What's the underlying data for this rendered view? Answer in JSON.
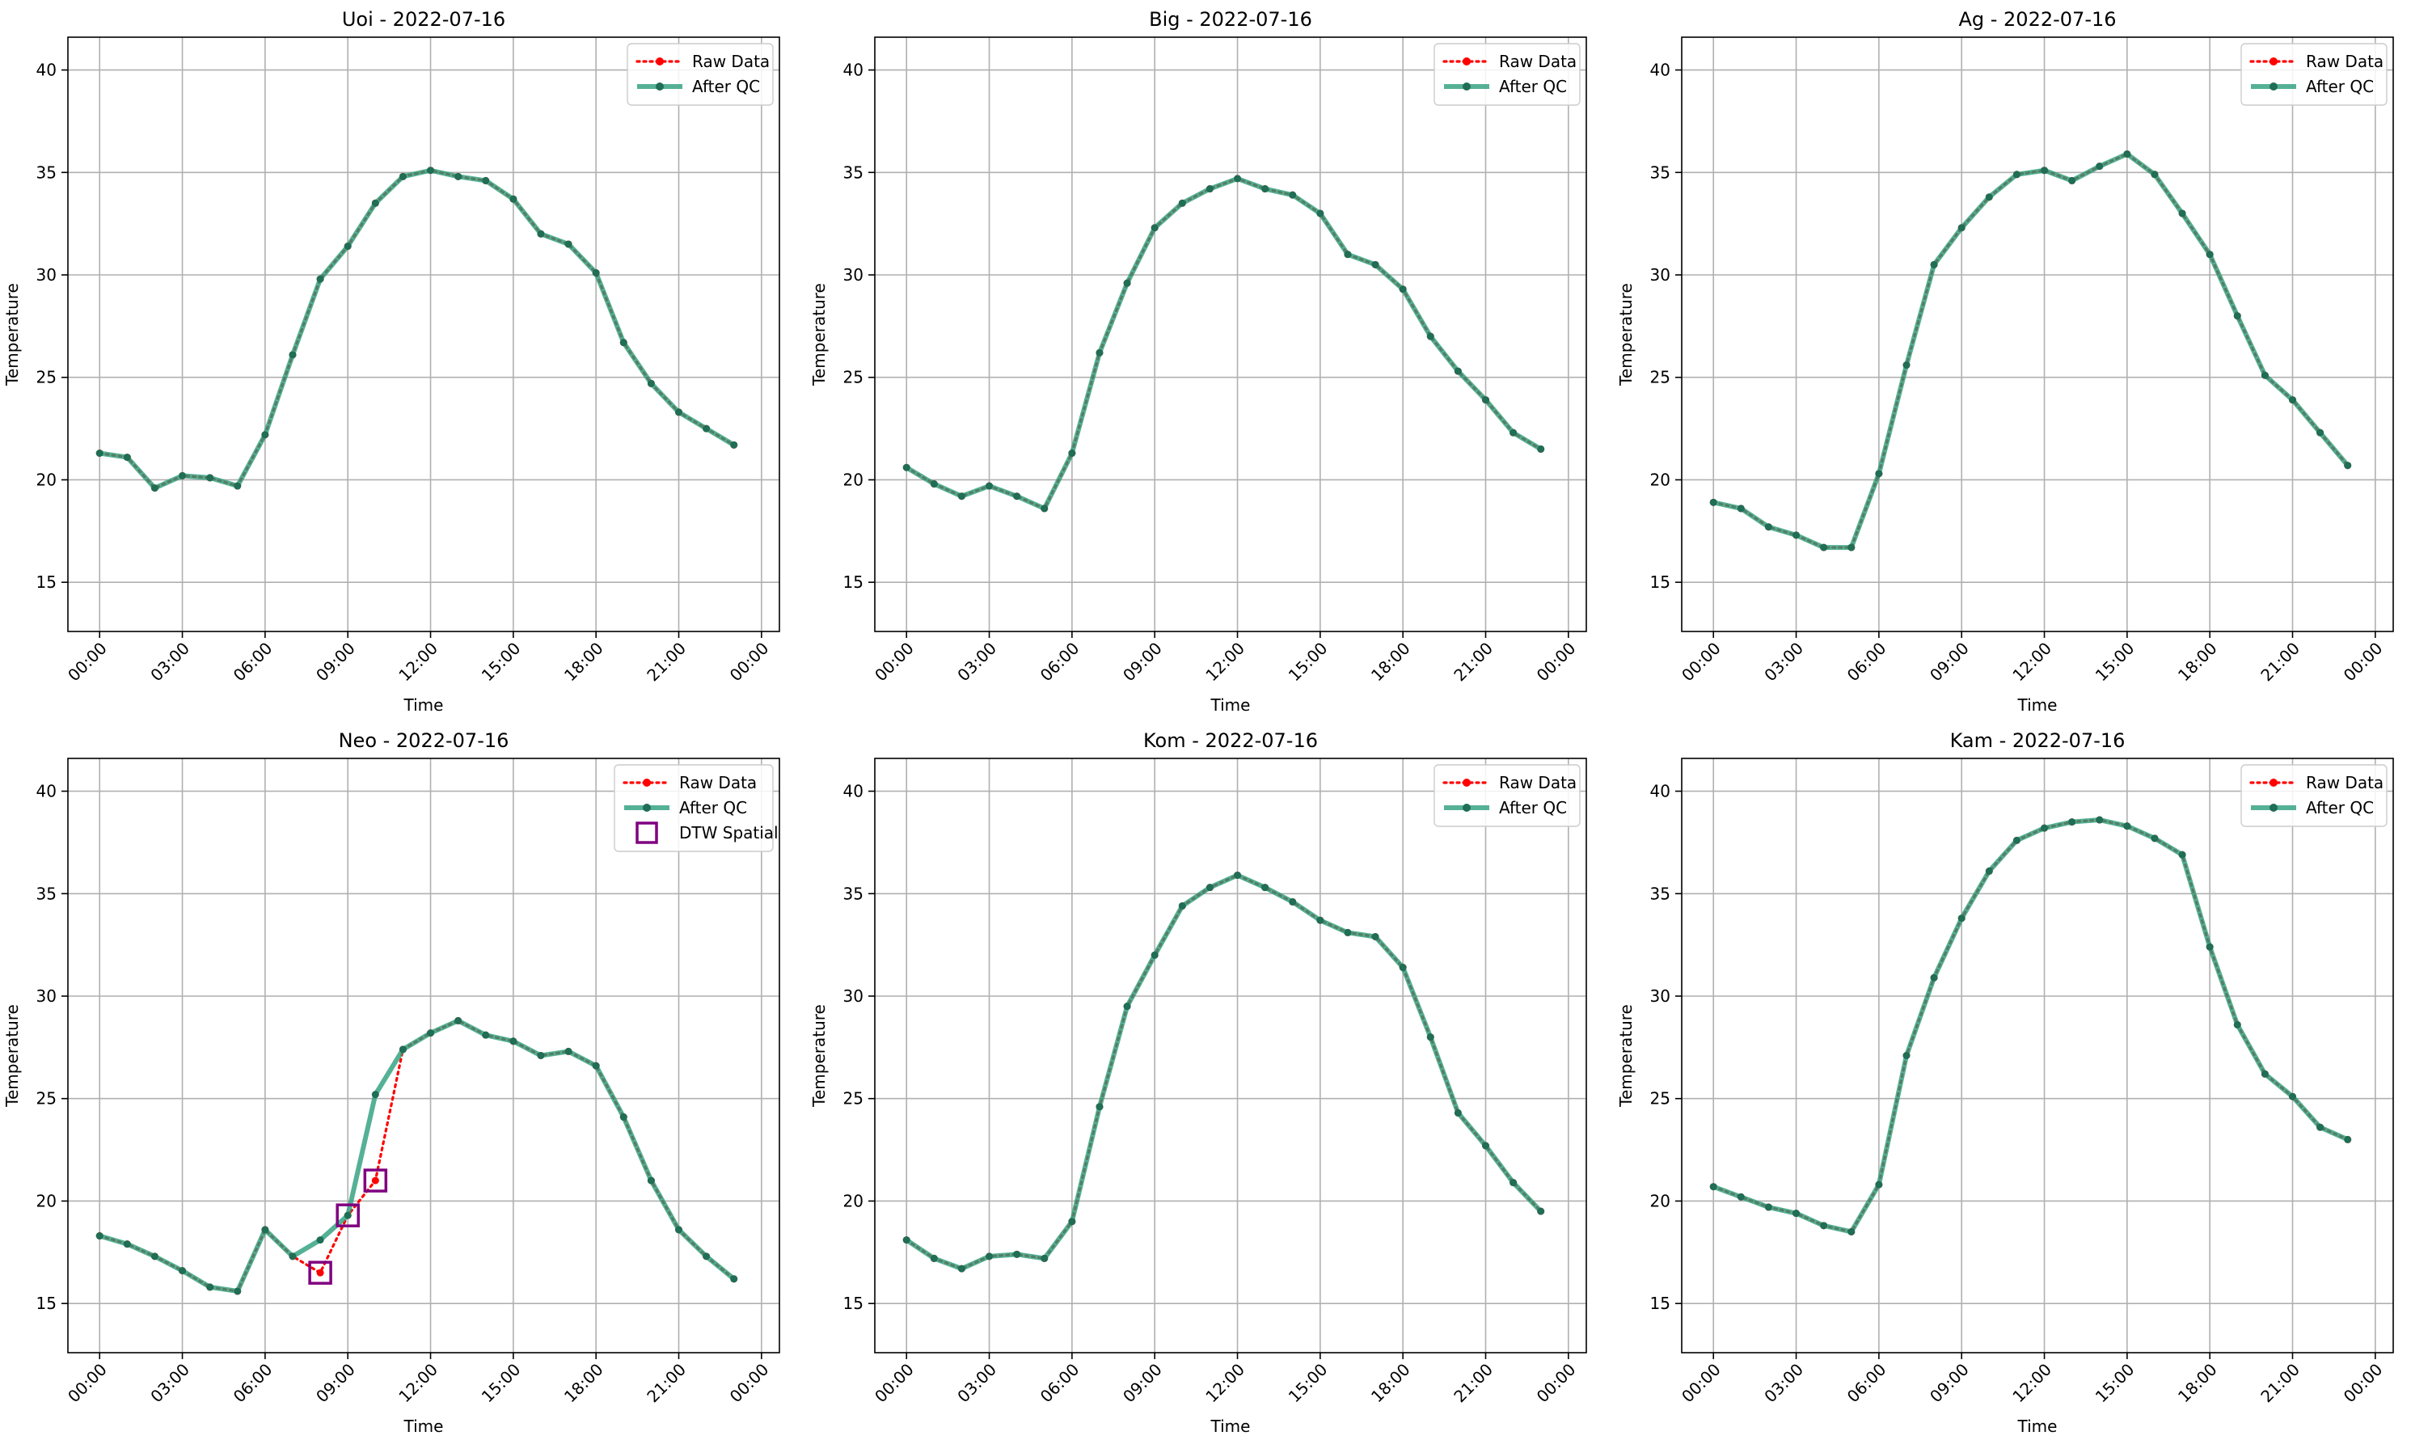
{
  "colors": {
    "raw": "#ff0000",
    "qc": "#2a9d7c",
    "qc_marker": "#1f6e55",
    "dtw_box": "#800080",
    "grid": "#b0b0b0",
    "axis": "#000000"
  },
  "chart_data": [
    {
      "type": "line",
      "title": "Uoi - 2022-07-16",
      "xlabel": "Time",
      "ylabel": "Temperature",
      "x_tick_labels": [
        "00:00",
        "03:00",
        "06:00",
        "09:00",
        "12:00",
        "15:00",
        "18:00",
        "21:00",
        "00:00"
      ],
      "y_ticks": [
        15,
        20,
        25,
        30,
        35,
        40
      ],
      "ylim": [
        12.6,
        41.6
      ],
      "grid": true,
      "legend_position": "top-right",
      "legend": [
        "Raw Data",
        "After QC"
      ],
      "hours": [
        0,
        1,
        2,
        3,
        4,
        5,
        6,
        7,
        8,
        9,
        10,
        11,
        12,
        13,
        14,
        15,
        16,
        17,
        18,
        19,
        20,
        21,
        22,
        23
      ],
      "series": [
        {
          "name": "Raw Data",
          "values": [
            21.3,
            21.1,
            19.6,
            20.2,
            20.1,
            19.7,
            22.2,
            26.1,
            29.8,
            31.4,
            33.5,
            34.8,
            35.1,
            34.8,
            34.6,
            33.7,
            32.0,
            31.5,
            30.1,
            26.7,
            24.7,
            23.3,
            22.5,
            21.7
          ]
        },
        {
          "name": "After QC",
          "values": [
            21.3,
            21.1,
            19.6,
            20.2,
            20.1,
            19.7,
            22.2,
            26.1,
            29.8,
            31.4,
            33.5,
            34.8,
            35.1,
            34.8,
            34.6,
            33.7,
            32.0,
            31.5,
            30.1,
            26.7,
            24.7,
            23.3,
            22.5,
            21.7
          ]
        }
      ],
      "flagged": []
    },
    {
      "type": "line",
      "title": "Big - 2022-07-16",
      "xlabel": "Time",
      "ylabel": "Temperature",
      "x_tick_labels": [
        "00:00",
        "03:00",
        "06:00",
        "09:00",
        "12:00",
        "15:00",
        "18:00",
        "21:00",
        "00:00"
      ],
      "y_ticks": [
        15,
        20,
        25,
        30,
        35,
        40
      ],
      "ylim": [
        12.6,
        41.6
      ],
      "grid": true,
      "legend_position": "top-right",
      "legend": [
        "Raw Data",
        "After QC"
      ],
      "hours": [
        0,
        1,
        2,
        3,
        4,
        5,
        6,
        7,
        8,
        9,
        10,
        11,
        12,
        13,
        14,
        15,
        16,
        17,
        18,
        19,
        20,
        21,
        22,
        23
      ],
      "series": [
        {
          "name": "Raw Data",
          "values": [
            20.6,
            19.8,
            19.2,
            19.7,
            19.2,
            18.6,
            21.3,
            26.2,
            29.6,
            32.3,
            33.5,
            34.2,
            34.7,
            34.2,
            33.9,
            33.0,
            31.0,
            30.5,
            29.3,
            27.0,
            25.3,
            23.9,
            22.3,
            21.5
          ]
        },
        {
          "name": "After QC",
          "values": [
            20.6,
            19.8,
            19.2,
            19.7,
            19.2,
            18.6,
            21.3,
            26.2,
            29.6,
            32.3,
            33.5,
            34.2,
            34.7,
            34.2,
            33.9,
            33.0,
            31.0,
            30.5,
            29.3,
            27.0,
            25.3,
            23.9,
            22.3,
            21.5
          ]
        }
      ],
      "flagged": []
    },
    {
      "type": "line",
      "title": "Ag - 2022-07-16",
      "xlabel": "Time",
      "ylabel": "Temperature",
      "x_tick_labels": [
        "00:00",
        "03:00",
        "06:00",
        "09:00",
        "12:00",
        "15:00",
        "18:00",
        "21:00",
        "00:00"
      ],
      "y_ticks": [
        15,
        20,
        25,
        30,
        35,
        40
      ],
      "ylim": [
        12.6,
        41.6
      ],
      "grid": true,
      "legend_position": "top-right",
      "legend": [
        "Raw Data",
        "After QC"
      ],
      "hours": [
        0,
        1,
        2,
        3,
        4,
        5,
        6,
        7,
        8,
        9,
        10,
        11,
        12,
        13,
        14,
        15,
        16,
        17,
        18,
        19,
        20,
        21,
        22,
        23
      ],
      "series": [
        {
          "name": "Raw Data",
          "values": [
            18.9,
            18.6,
            17.7,
            17.3,
            16.7,
            16.7,
            20.3,
            25.6,
            30.5,
            32.3,
            33.8,
            34.9,
            35.1,
            34.6,
            35.3,
            35.9,
            34.9,
            33.0,
            31.0,
            28.0,
            25.1,
            23.9,
            22.3,
            20.7
          ]
        },
        {
          "name": "After QC",
          "values": [
            18.9,
            18.6,
            17.7,
            17.3,
            16.7,
            16.7,
            20.3,
            25.6,
            30.5,
            32.3,
            33.8,
            34.9,
            35.1,
            34.6,
            35.3,
            35.9,
            34.9,
            33.0,
            31.0,
            28.0,
            25.1,
            23.9,
            22.3,
            20.7
          ]
        }
      ],
      "flagged": []
    },
    {
      "type": "line",
      "title": "Neo - 2022-07-16",
      "xlabel": "Time",
      "ylabel": "Temperature",
      "x_tick_labels": [
        "00:00",
        "03:00",
        "06:00",
        "09:00",
        "12:00",
        "15:00",
        "18:00",
        "21:00",
        "00:00"
      ],
      "y_ticks": [
        15,
        20,
        25,
        30,
        35,
        40
      ],
      "ylim": [
        12.6,
        41.6
      ],
      "grid": true,
      "legend_position": "top-right",
      "legend": [
        "Raw Data",
        "After QC",
        "DTW Spatial"
      ],
      "hours": [
        0,
        1,
        2,
        3,
        4,
        5,
        6,
        7,
        8,
        9,
        10,
        11,
        12,
        13,
        14,
        15,
        16,
        17,
        18,
        19,
        20,
        21,
        22,
        23
      ],
      "series": [
        {
          "name": "Raw Data",
          "values": [
            18.3,
            17.9,
            17.3,
            16.6,
            15.8,
            15.6,
            18.6,
            17.3,
            16.5,
            19.3,
            21.0,
            27.4,
            28.2,
            28.8,
            28.1,
            27.8,
            27.1,
            27.3,
            26.6,
            24.1,
            21.0,
            18.6,
            17.3,
            16.2
          ]
        },
        {
          "name": "After QC",
          "values": [
            18.3,
            17.9,
            17.3,
            16.6,
            15.8,
            15.6,
            18.6,
            17.3,
            18.1,
            19.3,
            25.2,
            27.4,
            28.2,
            28.8,
            28.1,
            27.8,
            27.1,
            27.3,
            26.6,
            24.1,
            21.0,
            18.6,
            17.3,
            16.2
          ]
        }
      ],
      "flagged": [
        {
          "hour": 8,
          "value": 16.5
        },
        {
          "hour": 9,
          "value": 19.3
        },
        {
          "hour": 10,
          "value": 21.0
        }
      ]
    },
    {
      "type": "line",
      "title": "Kom - 2022-07-16",
      "xlabel": "Time",
      "ylabel": "Temperature",
      "x_tick_labels": [
        "00:00",
        "03:00",
        "06:00",
        "09:00",
        "12:00",
        "15:00",
        "18:00",
        "21:00",
        "00:00"
      ],
      "y_ticks": [
        15,
        20,
        25,
        30,
        35,
        40
      ],
      "ylim": [
        12.6,
        41.6
      ],
      "grid": true,
      "legend_position": "top-right",
      "legend": [
        "Raw Data",
        "After QC"
      ],
      "hours": [
        0,
        1,
        2,
        3,
        4,
        5,
        6,
        7,
        8,
        9,
        10,
        11,
        12,
        13,
        14,
        15,
        16,
        17,
        18,
        19,
        20,
        21,
        22,
        23
      ],
      "series": [
        {
          "name": "Raw Data",
          "values": [
            18.1,
            17.2,
            16.7,
            17.3,
            17.4,
            17.2,
            19.0,
            24.6,
            29.5,
            32.0,
            34.4,
            35.3,
            35.9,
            35.3,
            34.6,
            33.7,
            33.1,
            32.9,
            31.4,
            28.0,
            24.3,
            22.7,
            20.9,
            19.5
          ]
        },
        {
          "name": "After QC",
          "values": [
            18.1,
            17.2,
            16.7,
            17.3,
            17.4,
            17.2,
            19.0,
            24.6,
            29.5,
            32.0,
            34.4,
            35.3,
            35.9,
            35.3,
            34.6,
            33.7,
            33.1,
            32.9,
            31.4,
            28.0,
            24.3,
            22.7,
            20.9,
            19.5
          ]
        }
      ],
      "flagged": []
    },
    {
      "type": "line",
      "title": "Kam - 2022-07-16",
      "xlabel": "Time",
      "ylabel": "Temperature",
      "x_tick_labels": [
        "00:00",
        "03:00",
        "06:00",
        "09:00",
        "12:00",
        "15:00",
        "18:00",
        "21:00",
        "00:00"
      ],
      "y_ticks": [
        15,
        20,
        25,
        30,
        35,
        40
      ],
      "ylim": [
        12.6,
        41.6
      ],
      "grid": true,
      "legend_position": "top-right",
      "legend": [
        "Raw Data",
        "After QC"
      ],
      "hours": [
        0,
        1,
        2,
        3,
        4,
        5,
        6,
        7,
        8,
        9,
        10,
        11,
        12,
        13,
        14,
        15,
        16,
        17,
        18,
        19,
        20,
        21,
        22,
        23
      ],
      "series": [
        {
          "name": "Raw Data",
          "values": [
            20.7,
            20.2,
            19.7,
            19.4,
            18.8,
            18.5,
            20.8,
            27.1,
            30.9,
            33.8,
            36.1,
            37.6,
            38.2,
            38.5,
            38.6,
            38.3,
            37.7,
            36.9,
            32.4,
            28.6,
            26.2,
            25.1,
            23.6,
            23.0
          ]
        },
        {
          "name": "After QC",
          "values": [
            20.7,
            20.2,
            19.7,
            19.4,
            18.8,
            18.5,
            20.8,
            27.1,
            30.9,
            33.8,
            36.1,
            37.6,
            38.2,
            38.5,
            38.6,
            38.3,
            37.7,
            36.9,
            32.4,
            28.6,
            26.2,
            25.1,
            23.6,
            23.0
          ]
        }
      ],
      "flagged": []
    }
  ]
}
